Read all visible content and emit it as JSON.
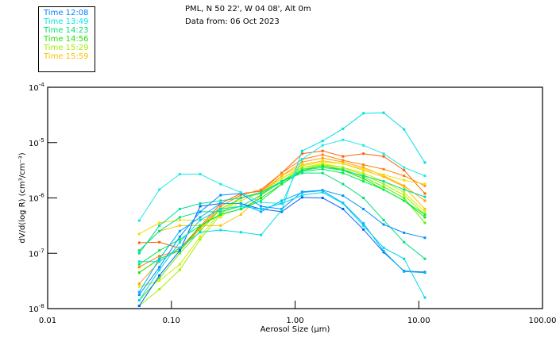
{
  "header": {
    "line1": "PML, N 50 22', W 04 08', Alt 0m",
    "line2": "Data from: 06 Oct 2023"
  },
  "legend": [
    {
      "label": "Time 12:08",
      "color": "#0080ff"
    },
    {
      "label": "Time 13:49",
      "color": "#00e8e8"
    },
    {
      "label": "Time 14:23",
      "color": "#00e070"
    },
    {
      "label": "Time 14:56",
      "color": "#20e000"
    },
    {
      "label": "Time 15:29",
      "color": "#a0f000"
    },
    {
      "label": "Time 15:59",
      "color": "#ffc000"
    }
  ],
  "chart_data": {
    "type": "line",
    "xscale": "log",
    "yscale": "log",
    "xlabel": "Aerosol Size (µm)",
    "ylabel": "dV/d(log R) (cm³/cm⁻³)",
    "xlim": [
      0.01,
      100
    ],
    "ylim": [
      1e-08,
      0.0001
    ],
    "xticks": [
      "0.01",
      "0.10",
      "1.00",
      "10.00",
      "100.00"
    ],
    "yticks": [
      {
        "base": "10",
        "exp": "-8"
      },
      {
        "base": "10",
        "exp": "-7"
      },
      {
        "base": "10",
        "exp": "-6"
      },
      {
        "base": "10",
        "exp": "-5"
      },
      {
        "base": "10",
        "exp": "-4"
      }
    ],
    "x": [
      0.055,
      0.08,
      0.117,
      0.171,
      0.25,
      0.365,
      0.53,
      0.78,
      1.14,
      1.67,
      2.44,
      3.57,
      5.2,
      7.6,
      11.2
    ],
    "series_log10": [
      {
        "color": "#ff6000",
        "values": [
          -6.81,
          -6.8,
          -6.91,
          -6.52,
          -6.1,
          -5.92,
          -5.88,
          -5.55,
          -5.2,
          -5.15,
          -5.25,
          -5.2,
          -5.25,
          -5.5,
          -5.92
        ]
      },
      {
        "color": "#ff8000",
        "values": [
          -7.25,
          -7.05,
          -6.95,
          -6.55,
          -6.15,
          -5.95,
          -5.85,
          -5.55,
          -5.3,
          -5.22,
          -5.32,
          -5.4,
          -5.48,
          -5.6,
          -5.78
        ]
      },
      {
        "color": "#ffa000",
        "values": [
          -7.55,
          -7.15,
          -6.9,
          -6.55,
          -6.2,
          -6.0,
          -5.9,
          -5.6,
          -5.35,
          -5.28,
          -5.35,
          -5.45,
          -5.6,
          -5.78,
          -6.05
        ]
      },
      {
        "color": "#ffc000",
        "values": [
          -6.95,
          -6.6,
          -6.5,
          -6.5,
          -6.5,
          -6.3,
          -5.95,
          -5.6,
          -5.4,
          -5.33,
          -5.38,
          -5.5,
          -5.62,
          -5.8,
          -6.2
        ]
      },
      {
        "color": "#f0e000",
        "values": [
          -6.65,
          -6.45,
          -6.4,
          -6.4,
          -6.35,
          -6.05,
          -5.9,
          -5.65,
          -5.42,
          -5.35,
          -5.38,
          -5.48,
          -5.58,
          -5.68,
          -5.75
        ]
      },
      {
        "color": "#d0f000",
        "values": [
          -7.6,
          -7.5,
          -7.2,
          -6.7,
          -6.25,
          -6.0,
          -5.9,
          -5.65,
          -5.45,
          -5.38,
          -5.45,
          -5.55,
          -5.7,
          -5.9,
          -6.25
        ]
      },
      {
        "color": "#a0f000",
        "values": [
          -7.95,
          -7.65,
          -7.3,
          -6.75,
          -6.3,
          -6.0,
          -5.9,
          -5.7,
          -5.45,
          -5.4,
          -5.45,
          -5.58,
          -5.75,
          -5.95,
          -6.3
        ]
      },
      {
        "color": "#60f000",
        "values": [
          -7.85,
          -7.45,
          -7.0,
          -6.6,
          -6.2,
          -6.0,
          -5.92,
          -5.72,
          -5.48,
          -5.42,
          -5.48,
          -5.62,
          -5.8,
          -6.0,
          -6.45
        ]
      },
      {
        "color": "#20e000",
        "values": [
          -7.35,
          -7.1,
          -6.95,
          -6.5,
          -6.3,
          -6.2,
          -6.0,
          -5.75,
          -5.5,
          -5.42,
          -5.5,
          -5.65,
          -5.85,
          -6.05,
          -6.35
        ]
      },
      {
        "color": "#00f040",
        "values": [
          -7.2,
          -6.95,
          -6.75,
          -6.5,
          -6.3,
          -6.2,
          -6.05,
          -5.75,
          -5.52,
          -5.48,
          -5.55,
          -5.7,
          -5.85,
          -6.05,
          -6.3
        ]
      },
      {
        "color": "#00e080",
        "values": [
          -6.95,
          -6.6,
          -6.35,
          -6.25,
          -6.25,
          -6.15,
          -5.95,
          -5.7,
          -5.55,
          -5.55,
          -5.75,
          -6.0,
          -6.4,
          -6.8,
          -7.1
        ]
      },
      {
        "color": "#00e0a0",
        "values": [
          -7.0,
          -6.5,
          -6.2,
          -6.1,
          -6.05,
          -6.0,
          -5.9,
          -5.7,
          -5.5,
          -5.45,
          -5.5,
          -5.6,
          -5.7,
          -5.85,
          -5.98
        ]
      },
      {
        "color": "#0060ff",
        "values": [
          -7.95,
          -7.4,
          -6.95,
          -6.15,
          -6.1,
          -6.1,
          -6.2,
          -6.25,
          -5.99,
          -6.0,
          -6.2,
          -6.57,
          -6.98,
          -7.32,
          -7.34
        ]
      },
      {
        "color": "#0090ff",
        "values": [
          -7.75,
          -7.25,
          -6.7,
          -6.25,
          -5.95,
          -5.92,
          -6.15,
          -6.2,
          -5.89,
          -5.86,
          -5.96,
          -6.2,
          -6.48,
          -6.63,
          -6.72
        ]
      },
      {
        "color": "#00b0ff",
        "values": [
          -7.7,
          -7.1,
          -6.6,
          -6.35,
          -6.1,
          -6.1,
          -6.25,
          -6.05,
          -5.9,
          -5.87,
          -6.09,
          -6.46,
          -6.96,
          -7.33,
          -7.35
        ]
      },
      {
        "color": "#00e0e0",
        "values": [
          -7.15,
          -7.15,
          -6.9,
          -6.62,
          -6.58,
          -6.62,
          -6.67,
          -6.22,
          -5.15,
          -4.97,
          -4.75,
          -4.47,
          -4.46,
          -4.76,
          -5.36
        ]
      },
      {
        "color": "#20e8e8",
        "values": [
          -6.41,
          -5.85,
          -5.57,
          -5.57,
          -5.75,
          -5.9,
          -6.08,
          -6.1,
          -5.3,
          -5.05,
          -4.95,
          -5.05,
          -5.2,
          -5.45,
          -5.6
        ]
      },
      {
        "color": "#00d8e8",
        "values": [
          -7.85,
          -7.3,
          -6.8,
          -6.4,
          -6.2,
          -6.15,
          -6.2,
          -6.1,
          -5.95,
          -5.9,
          -6.1,
          -6.5,
          -6.9,
          -7.1,
          -7.8
        ]
      }
    ]
  }
}
